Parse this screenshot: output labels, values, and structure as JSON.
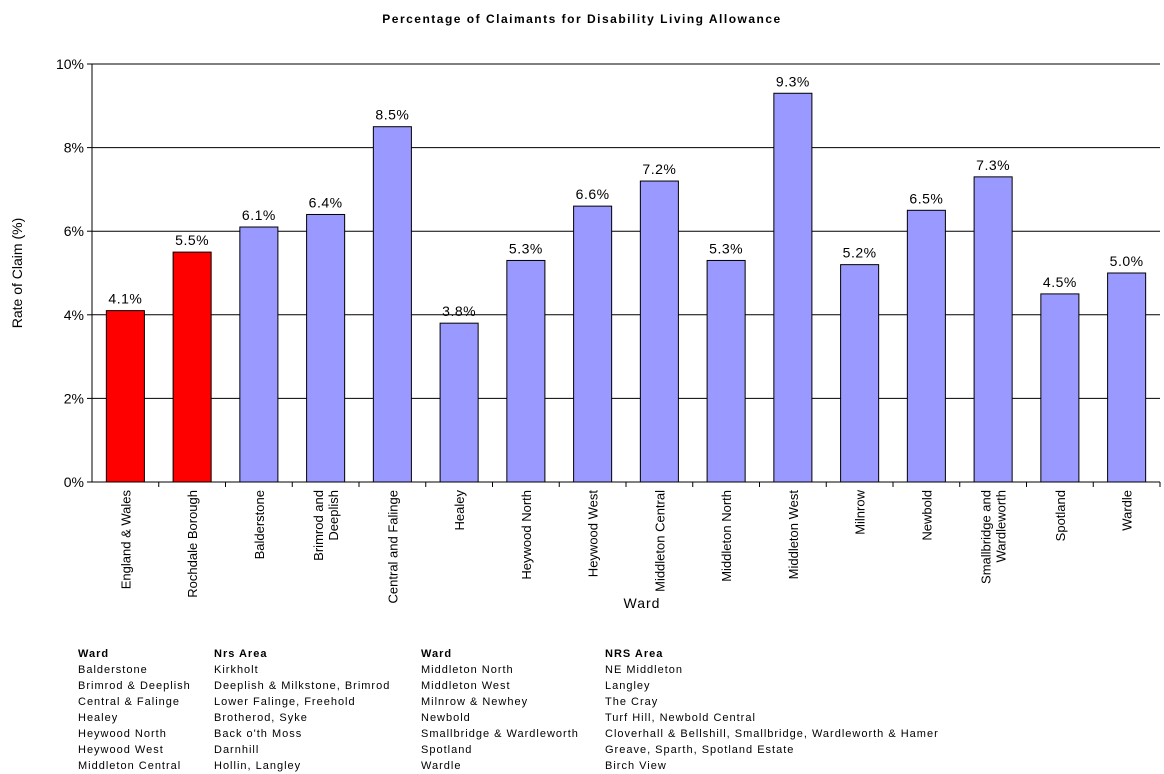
{
  "chart_data": {
    "type": "bar",
    "title": "Percentage of Claimants for Disability Living Allowance",
    "xlabel": "Ward",
    "ylabel": "Rate of Claim (%)",
    "ylim": [
      0,
      10
    ],
    "yticks": [
      "0%",
      "2%",
      "4%",
      "6%",
      "8%",
      "10%"
    ],
    "categories": [
      "England & Wales",
      "Rochdale Borough",
      "Balderstone",
      "Brimrod and Deeplish",
      "Central and Falinge",
      "Healey",
      "Heywood North",
      "Heywood West",
      "Middleton Central",
      "Middleton North",
      "Middleton West",
      "Milnrow",
      "Newbold",
      "Smallbridge and Wardleworth",
      "Spotland",
      "Wardle"
    ],
    "category_lines": [
      [
        "England & Wales"
      ],
      [
        "Rochdale Borough"
      ],
      [
        "Balderstone"
      ],
      [
        "Brimrod and",
        "Deeplish"
      ],
      [
        "Central and Falinge"
      ],
      [
        "Healey"
      ],
      [
        "Heywood North"
      ],
      [
        "Heywood West"
      ],
      [
        "Middleton Central"
      ],
      [
        "Middleton North"
      ],
      [
        "Middleton West"
      ],
      [
        "Milnrow"
      ],
      [
        "Newbold"
      ],
      [
        "Smallbridge and",
        "Wardleworth"
      ],
      [
        "Spotland"
      ],
      [
        "Wardle"
      ]
    ],
    "values": [
      4.1,
      5.5,
      6.1,
      6.4,
      8.5,
      3.8,
      5.3,
      6.6,
      7.2,
      5.3,
      9.3,
      5.2,
      6.5,
      7.3,
      4.5,
      5.0
    ],
    "labels": [
      "4.1%",
      "5.5%",
      "6.1%",
      "6.4%",
      "8.5%",
      "3.8%",
      "5.3%",
      "6.6%",
      "7.2%",
      "5.3%",
      "9.3%",
      "5.2%",
      "6.5%",
      "7.3%",
      "4.5%",
      "5.0%"
    ],
    "colors": [
      "#ff0000",
      "#ff0000",
      "#9999ff",
      "#9999ff",
      "#9999ff",
      "#9999ff",
      "#9999ff",
      "#9999ff",
      "#9999ff",
      "#9999ff",
      "#9999ff",
      "#9999ff",
      "#9999ff",
      "#9999ff",
      "#9999ff",
      "#9999ff"
    ],
    "grid": true,
    "legend": "none"
  },
  "lookup_table": {
    "col1_header": "Ward",
    "col1": [
      "Balderstone",
      "Brimrod & Deeplish",
      "Central & Falinge",
      "Healey",
      "Heywood North",
      "Heywood West",
      "Middleton Central"
    ],
    "col2_header": "Nrs Area",
    "col2": [
      "Kirkholt",
      "Deeplish & Milkstone, Brimrod",
      "Lower Falinge, Freehold",
      "Brotherod, Syke",
      "Back o'th Moss",
      "Darnhill",
      "Hollin, Langley"
    ],
    "col3_header": "Ward",
    "col3": [
      "Middleton North",
      "Middleton West",
      "Milnrow & Newhey",
      "Newbold",
      "Smallbridge & Wardleworth",
      "Spotland",
      "Wardle"
    ],
    "col4_header": "NRS Area",
    "col4": [
      "NE Middleton",
      "Langley",
      "The Cray",
      "Turf Hill, Newbold Central",
      "Cloverhall & Bellshill, Smallbridge, Wardleworth & Hamer",
      "Greave, Sparth, Spotland Estate",
      "Birch View"
    ]
  }
}
